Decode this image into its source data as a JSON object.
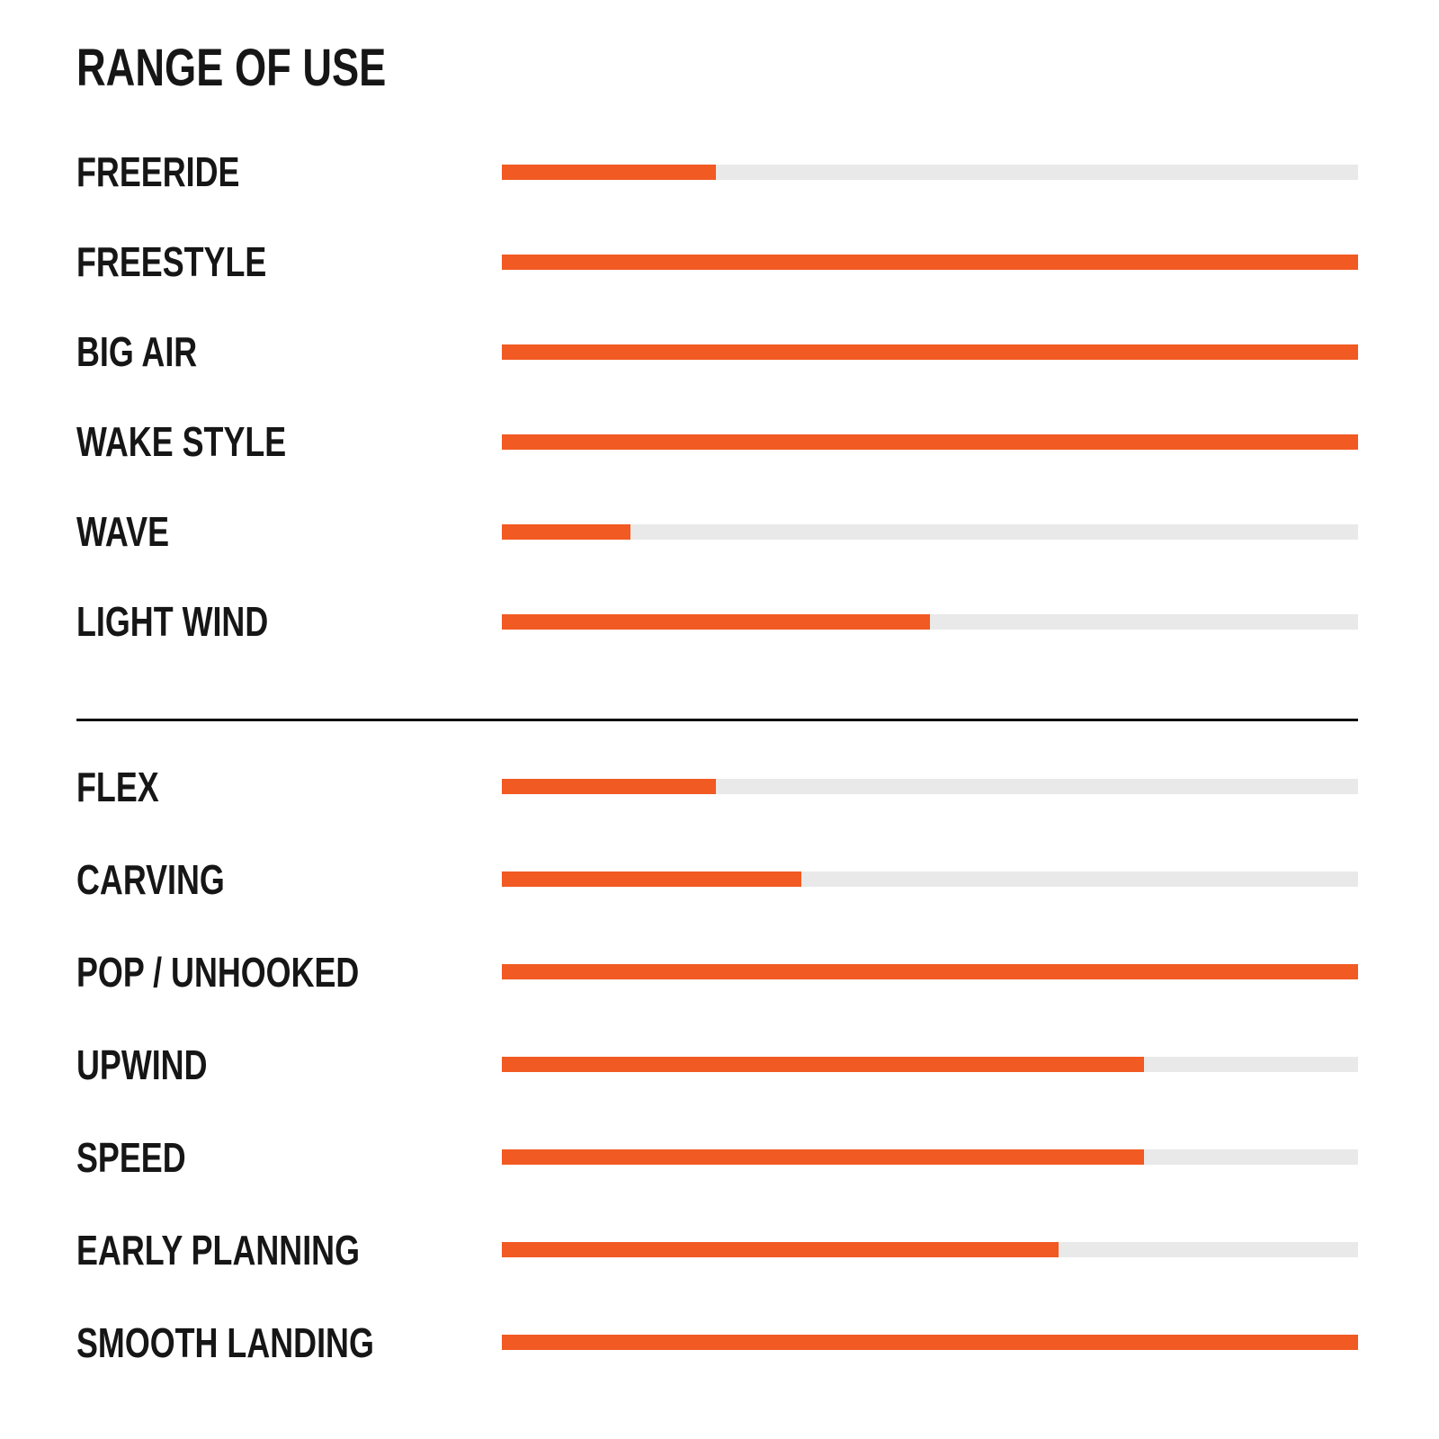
{
  "page": {
    "title": "RANGE OF USE"
  },
  "colors": {
    "accent": "#F15A22",
    "track": "#E9E9E9",
    "text": "#161616",
    "divider": "#0E0E0E",
    "background": "#FFFFFF"
  },
  "chart_data": {
    "type": "bar",
    "orientation": "horizontal",
    "title": "RANGE OF USE",
    "value_range": [
      0,
      100
    ],
    "value_unit": "percent of full bar",
    "grid": false,
    "legend": false,
    "axis_labels": false,
    "bar_color": "#F15A22",
    "track_color": "#E9E9E9",
    "sections": [
      {
        "name": "range-of-use",
        "rows": [
          {
            "label": "FREERIDE",
            "value": 25
          },
          {
            "label": "FREESTYLE",
            "value": 100
          },
          {
            "label": "BIG AIR",
            "value": 100
          },
          {
            "label": "WAKE STYLE",
            "value": 100
          },
          {
            "label": "WAVE",
            "value": 15
          },
          {
            "label": "LIGHT WIND",
            "value": 50
          }
        ]
      },
      {
        "name": "board-characteristics",
        "rows": [
          {
            "label": "FLEX",
            "value": 25
          },
          {
            "label": "CARVING",
            "value": 35
          },
          {
            "label": "POP / UNHOOKED",
            "value": 100
          },
          {
            "label": "UPWIND",
            "value": 75
          },
          {
            "label": "SPEED",
            "value": 75
          },
          {
            "label": "EARLY PLANNING",
            "value": 65
          },
          {
            "label": "SMOOTH LANDING",
            "value": 100
          }
        ]
      }
    ]
  }
}
